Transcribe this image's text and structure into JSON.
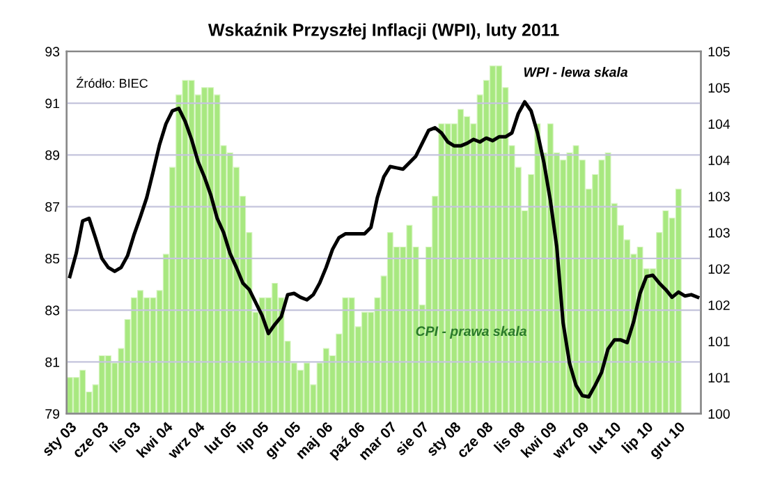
{
  "chart_data": {
    "type": "bar",
    "title": "Wskaźnik Przyszłej Inflacji (WPI), luty 2011",
    "categories": [
      "sty 03",
      null,
      null,
      null,
      null,
      "cze 03",
      null,
      null,
      null,
      null,
      "lis 03",
      null,
      null,
      null,
      null,
      "kwi 04",
      null,
      null,
      null,
      null,
      "wrz 04",
      null,
      null,
      null,
      null,
      "lut 05",
      null,
      null,
      null,
      null,
      "lip 05",
      null,
      null,
      null,
      null,
      "gru 05",
      null,
      null,
      null,
      null,
      "maj 06",
      null,
      null,
      null,
      null,
      "paź 06",
      null,
      null,
      null,
      null,
      "mar 07",
      null,
      null,
      null,
      null,
      "sie 07",
      null,
      null,
      null,
      null,
      "sty 08",
      null,
      null,
      null,
      null,
      "cze 08",
      null,
      null,
      null,
      null,
      "lis 08",
      null,
      null,
      null,
      null,
      "kwi 09",
      null,
      null,
      null,
      null,
      "wrz 09",
      null,
      null,
      null,
      null,
      "lut 10",
      null,
      null,
      null,
      null,
      "lip 10",
      null,
      null,
      null,
      null,
      "gru 10",
      null,
      null,
      null
    ],
    "series": [
      {
        "name": "CPI - prawa skala",
        "axis": "y2",
        "color": "#a8e880",
        "values": [
          100.5,
          100.5,
          100.6,
          100.3,
          100.4,
          100.8,
          100.8,
          100.7,
          100.9,
          101.3,
          101.6,
          101.7,
          101.6,
          101.6,
          101.7,
          102.2,
          103.4,
          104.4,
          104.6,
          104.6,
          104.4,
          104.5,
          104.5,
          104.4,
          103.7,
          103.6,
          103.4,
          103.0,
          102.5,
          101.4,
          101.6,
          101.6,
          101.8,
          101.6,
          101.0,
          100.7,
          100.6,
          100.7,
          100.4,
          100.7,
          100.9,
          100.8,
          101.1,
          101.6,
          101.6,
          101.2,
          101.4,
          101.4,
          101.6,
          101.9,
          102.5,
          102.3,
          102.3,
          102.6,
          102.3,
          101.5,
          102.3,
          103.0,
          104.0,
          104.0,
          104.0,
          104.2,
          104.1,
          104.0,
          104.4,
          104.6,
          104.8,
          104.8,
          104.5,
          103.7,
          103.4,
          102.8,
          103.3,
          104.0,
          103.6,
          104.0,
          103.6,
          103.5,
          103.6,
          103.7,
          103.5,
          103.1,
          103.3,
          103.5,
          103.6,
          102.9,
          102.6,
          102.4,
          102.2,
          102.3,
          102.0,
          102.0,
          102.5,
          102.8,
          102.7,
          103.1,
          null,
          null,
          null
        ]
      },
      {
        "name": "WPI - lewa skala",
        "type": "line",
        "color": "#000000",
        "values": [
          84.3,
          85.2,
          86.45,
          86.55,
          85.8,
          85.0,
          84.65,
          84.5,
          84.65,
          85.1,
          85.9,
          86.6,
          87.35,
          88.35,
          89.4,
          90.2,
          90.7,
          90.8,
          90.3,
          89.6,
          88.75,
          88.15,
          87.45,
          86.55,
          86.0,
          85.2,
          84.65,
          84.05,
          83.8,
          83.3,
          82.8,
          82.1,
          82.45,
          82.75,
          83.6,
          83.65,
          83.5,
          83.4,
          83.6,
          84.05,
          84.65,
          85.35,
          85.8,
          85.95,
          85.95,
          85.95,
          85.95,
          86.2,
          87.35,
          88.15,
          88.55,
          88.5,
          88.45,
          88.7,
          88.95,
          89.45,
          89.95,
          90.05,
          89.85,
          89.5,
          89.35,
          89.35,
          89.45,
          89.6,
          89.5,
          89.65,
          89.55,
          89.7,
          89.7,
          89.85,
          90.6,
          91.05,
          90.7,
          89.85,
          88.7,
          87.25,
          85.45,
          82.5,
          80.95,
          80.1,
          79.7,
          79.65,
          80.1,
          80.6,
          81.5,
          81.85,
          81.85,
          81.75,
          82.55,
          83.65,
          84.3,
          84.35,
          84.05,
          83.8,
          83.5,
          83.7,
          83.55,
          83.6,
          83.5
        ]
      }
    ],
    "ylim": [
      79,
      93
    ],
    "yticks": [
      79,
      81,
      83,
      85,
      87,
      89,
      91,
      93
    ],
    "y2lim": [
      100,
      105
    ],
    "y2ticks": [
      100,
      {
        "value": 100.5,
        "label": "101"
      },
      101,
      {
        "value": 101.5,
        "label": "102"
      },
      102,
      {
        "value": 102.5,
        "label": "103"
      },
      103,
      {
        "value": 103.5,
        "label": "104"
      },
      104,
      {
        "value": 104.5,
        "label": "105"
      },
      105
    ],
    "grid": "y",
    "legend": false,
    "annotations": [
      "Źródło: BIEC"
    ]
  }
}
